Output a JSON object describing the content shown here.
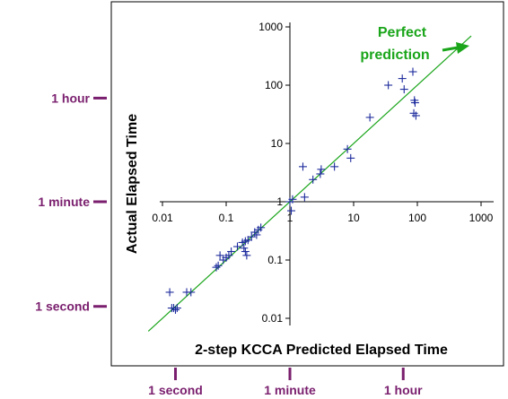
{
  "chart_data": {
    "type": "scatter",
    "scale": "log-log",
    "xlabel": "2-step KCCA Predicted Elapsed Time",
    "ylabel": "Actual Elapsed Time",
    "x_ticks": [
      "0.01",
      "0.1",
      "1",
      "10",
      "100",
      "1000"
    ],
    "x_tick_values": [
      0.01,
      0.1,
      1,
      10,
      100,
      1000
    ],
    "y_ticks": [
      "0.01",
      "0.1",
      "1",
      "10",
      "100",
      "1000"
    ],
    "y_tick_values": [
      0.01,
      0.1,
      1,
      10,
      100,
      1000
    ],
    "xlim": [
      0.005,
      1500
    ],
    "ylim": [
      0.006,
      1500
    ],
    "grid": false,
    "marker": "+",
    "marker_color": "#1c2a9c",
    "reference_line": {
      "label": [
        "Perfect",
        "prediction"
      ],
      "color": "#1aa51a",
      "from": [
        0.006,
        0.006
      ],
      "to": [
        700,
        700
      ]
    },
    "time_markers_x": [
      {
        "label": "1 second",
        "value": 0.016
      },
      {
        "label": "1 minute",
        "value": 1
      },
      {
        "label": "1 hour",
        "value": 60
      }
    ],
    "time_markers_y": [
      {
        "label": "1 hour",
        "value": 60
      },
      {
        "label": "1 minute",
        "value": 1
      },
      {
        "label": "1 second",
        "value": 0.016
      }
    ],
    "time_marker_color": "#7a1f6e",
    "points": [
      [
        0.013,
        0.028
      ],
      [
        0.014,
        0.015
      ],
      [
        0.015,
        0.015
      ],
      [
        0.016,
        0.014
      ],
      [
        0.017,
        0.015
      ],
      [
        0.024,
        0.028
      ],
      [
        0.028,
        0.028
      ],
      [
        0.07,
        0.075
      ],
      [
        0.075,
        0.08
      ],
      [
        0.08,
        0.12
      ],
      [
        0.09,
        0.1
      ],
      [
        0.1,
        0.11
      ],
      [
        0.11,
        0.12
      ],
      [
        0.12,
        0.14
      ],
      [
        0.15,
        0.17
      ],
      [
        0.18,
        0.2
      ],
      [
        0.19,
        0.16
      ],
      [
        0.2,
        0.21
      ],
      [
        0.2,
        0.14
      ],
      [
        0.21,
        0.12
      ],
      [
        0.22,
        0.22
      ],
      [
        0.25,
        0.25
      ],
      [
        0.28,
        0.3
      ],
      [
        0.3,
        0.27
      ],
      [
        0.32,
        0.33
      ],
      [
        0.35,
        0.36
      ],
      [
        1.0,
        1.0
      ],
      [
        1.05,
        0.7
      ],
      [
        1.1,
        1.1
      ],
      [
        1.6,
        4.0
      ],
      [
        1.7,
        1.2
      ],
      [
        2.3,
        2.4
      ],
      [
        3.0,
        3.0
      ],
      [
        3.1,
        3.6
      ],
      [
        5.0,
        4.0
      ],
      [
        8.0,
        8.0
      ],
      [
        9.0,
        5.6
      ],
      [
        18,
        28
      ],
      [
        35,
        100
      ],
      [
        58,
        130
      ],
      [
        62,
        85
      ],
      [
        85,
        170
      ],
      [
        88,
        33
      ],
      [
        90,
        55
      ],
      [
        92,
        50
      ],
      [
        95,
        30
      ]
    ]
  }
}
